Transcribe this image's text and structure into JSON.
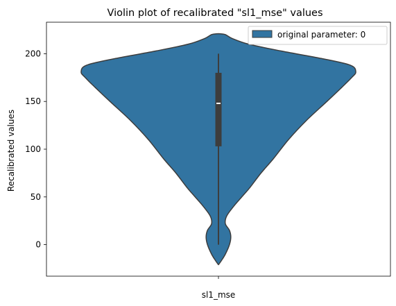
{
  "chart_data": {
    "type": "violin",
    "title": "Violin plot of recalibrated \"sl1_mse\" values",
    "ylabel": "Recalibrated values",
    "xlabel": "",
    "categories": [
      "sl1_mse"
    ],
    "ylim": [
      -33,
      233
    ],
    "yticks": [
      0,
      50,
      100,
      150,
      200
    ],
    "grid": false,
    "legend": {
      "placement": "top-right",
      "entries": [
        {
          "label": "original parameter: 0",
          "color": "#3274a1"
        }
      ]
    },
    "series": [
      {
        "name": "original parameter: 0",
        "category": "sl1_mse",
        "color": "#3274a1",
        "min": 0,
        "q1": 103,
        "median": 148,
        "q3": 180,
        "max": 200,
        "density_profile": [
          {
            "y": -21,
            "w": 0.0
          },
          {
            "y": -17,
            "w": 0.02
          },
          {
            "y": -10,
            "w": 0.05
          },
          {
            "y": 0,
            "w": 0.08
          },
          {
            "y": 8,
            "w": 0.09
          },
          {
            "y": 15,
            "w": 0.08
          },
          {
            "y": 22,
            "w": 0.05
          },
          {
            "y": 30,
            "w": 0.06
          },
          {
            "y": 40,
            "w": 0.11
          },
          {
            "y": 50,
            "w": 0.17
          },
          {
            "y": 60,
            "w": 0.23
          },
          {
            "y": 75,
            "w": 0.31
          },
          {
            "y": 90,
            "w": 0.4
          },
          {
            "y": 110,
            "w": 0.51
          },
          {
            "y": 130,
            "w": 0.64
          },
          {
            "y": 150,
            "w": 0.79
          },
          {
            "y": 165,
            "w": 0.9
          },
          {
            "y": 175,
            "w": 0.97
          },
          {
            "y": 181,
            "w": 1.0
          },
          {
            "y": 188,
            "w": 0.96
          },
          {
            "y": 195,
            "w": 0.75
          },
          {
            "y": 203,
            "w": 0.45
          },
          {
            "y": 210,
            "w": 0.22
          },
          {
            "y": 216,
            "w": 0.1
          },
          {
            "y": 220,
            "w": 0.05
          },
          {
            "y": 221,
            "w": 0.0
          }
        ]
      }
    ]
  }
}
